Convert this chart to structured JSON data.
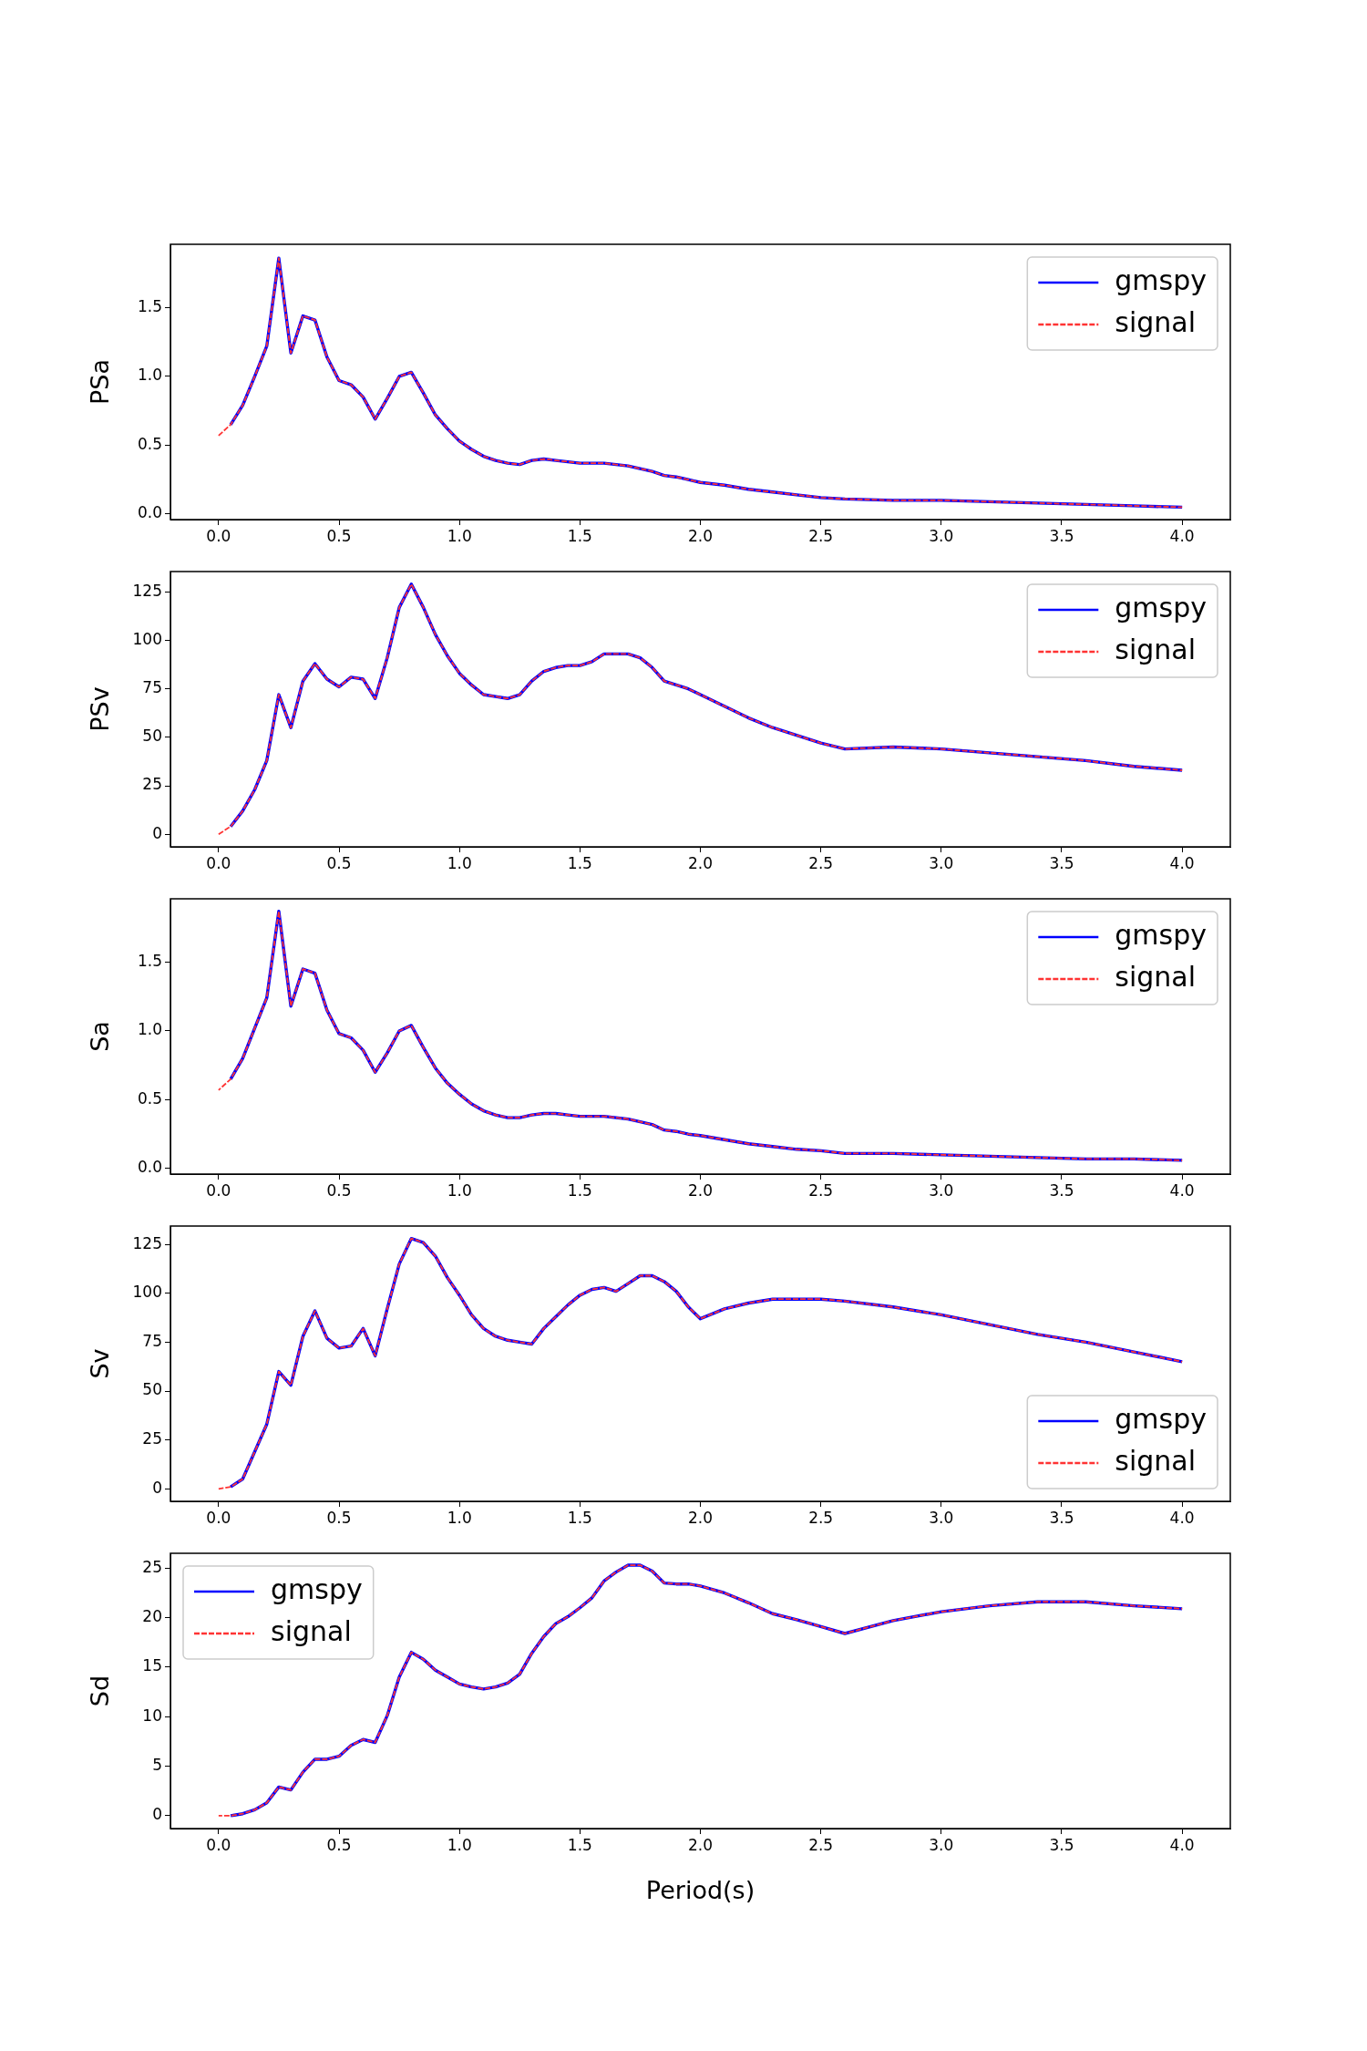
{
  "chart_data": [
    {
      "type": "line",
      "ylabel": "PSa",
      "legend": "top right",
      "xlim": [
        -0.2,
        4.2
      ],
      "ylim": [
        -0.04,
        1.96
      ],
      "xticks": [
        {
          "value": 0,
          "label": "0.0"
        },
        {
          "value": 0.5,
          "label": "0.5"
        },
        {
          "value": 1,
          "label": "1.0"
        },
        {
          "value": 1.5,
          "label": "1.5"
        },
        {
          "value": 2,
          "label": "2.0"
        },
        {
          "value": 2.5,
          "label": "2.5"
        },
        {
          "value": 3,
          "label": "3.0"
        },
        {
          "value": 3.5,
          "label": "3.5"
        },
        {
          "value": 4,
          "label": "4.0"
        }
      ],
      "yticks": [
        {
          "value": 0,
          "label": "0.0"
        },
        {
          "value": 0.5,
          "label": "0.5"
        },
        {
          "value": 1,
          "label": "1.0"
        },
        {
          "value": 1.5,
          "label": "1.5"
        }
      ],
      "x": [
        0,
        0.05,
        0.1,
        0.15,
        0.2,
        0.25,
        0.3,
        0.35,
        0.4,
        0.45,
        0.5,
        0.55,
        0.6,
        0.65,
        0.7,
        0.75,
        0.8,
        0.85,
        0.9,
        0.95,
        1.0,
        1.05,
        1.1,
        1.15,
        1.2,
        1.25,
        1.3,
        1.35,
        1.4,
        1.45,
        1.5,
        1.55,
        1.6,
        1.65,
        1.7,
        1.75,
        1.8,
        1.85,
        1.9,
        1.95,
        2.0,
        2.1,
        2.2,
        2.3,
        2.4,
        2.5,
        2.6,
        2.8,
        3.0,
        3.2,
        3.4,
        3.6,
        3.8,
        4.0
      ],
      "series": [
        {
          "name": "gmspy",
          "color": "#0000ff",
          "line_style": "solid",
          "values": [
            null,
            0.65,
            0.79,
            1.0,
            1.22,
            1.86,
            1.17,
            1.44,
            1.41,
            1.14,
            0.97,
            0.94,
            0.85,
            0.69,
            0.84,
            1.0,
            1.03,
            0.88,
            0.72,
            0.62,
            0.53,
            0.47,
            0.42,
            0.39,
            0.37,
            0.36,
            0.39,
            0.4,
            0.39,
            0.38,
            0.37,
            0.37,
            0.37,
            0.36,
            0.35,
            0.33,
            0.31,
            0.28,
            0.27,
            0.25,
            0.23,
            0.21,
            0.18,
            0.16,
            0.14,
            0.12,
            0.11,
            0.1,
            0.1,
            0.09,
            0.08,
            0.07,
            0.06,
            0.05
          ]
        },
        {
          "name": "signal",
          "color": "#ff3333",
          "line_style": "dashed",
          "values": [
            0.57,
            0.65,
            0.79,
            1.0,
            1.22,
            1.86,
            1.17,
            1.44,
            1.41,
            1.14,
            0.97,
            0.94,
            0.85,
            0.69,
            0.84,
            1.0,
            1.03,
            0.88,
            0.72,
            0.62,
            0.53,
            0.47,
            0.42,
            0.39,
            0.37,
            0.36,
            0.39,
            0.4,
            0.39,
            0.38,
            0.37,
            0.37,
            0.37,
            0.36,
            0.35,
            0.33,
            0.31,
            0.28,
            0.27,
            0.25,
            0.23,
            0.21,
            0.18,
            0.16,
            0.14,
            0.12,
            0.11,
            0.1,
            0.1,
            0.09,
            0.08,
            0.07,
            0.06,
            0.05
          ]
        }
      ]
    },
    {
      "type": "line",
      "ylabel": "PSv",
      "legend": "top right",
      "xlim": [
        -0.2,
        4.2
      ],
      "ylim": [
        -6.5,
        135.5
      ],
      "xticks": [
        {
          "value": 0,
          "label": "0.0"
        },
        {
          "value": 0.5,
          "label": "0.5"
        },
        {
          "value": 1,
          "label": "1.0"
        },
        {
          "value": 1.5,
          "label": "1.5"
        },
        {
          "value": 2,
          "label": "2.0"
        },
        {
          "value": 2.5,
          "label": "2.5"
        },
        {
          "value": 3,
          "label": "3.0"
        },
        {
          "value": 3.5,
          "label": "3.5"
        },
        {
          "value": 4,
          "label": "4.0"
        }
      ],
      "yticks": [
        0,
        25,
        50,
        75,
        100,
        125
      ],
      "x": [
        0,
        0.05,
        0.1,
        0.15,
        0.2,
        0.25,
        0.3,
        0.35,
        0.4,
        0.45,
        0.5,
        0.55,
        0.6,
        0.65,
        0.7,
        0.75,
        0.8,
        0.85,
        0.9,
        0.95,
        1.0,
        1.05,
        1.1,
        1.15,
        1.2,
        1.25,
        1.3,
        1.35,
        1.4,
        1.45,
        1.5,
        1.55,
        1.6,
        1.65,
        1.7,
        1.75,
        1.8,
        1.85,
        1.9,
        1.95,
        2.0,
        2.1,
        2.2,
        2.3,
        2.4,
        2.5,
        2.6,
        2.8,
        3.0,
        3.2,
        3.4,
        3.6,
        3.8,
        4.0
      ],
      "series": [
        {
          "name": "gmspy",
          "color": "#0000ff",
          "line_style": "solid",
          "values": [
            null,
            4,
            12,
            23,
            38,
            72,
            55,
            79,
            88,
            80,
            76,
            81,
            80,
            70,
            91,
            117,
            129,
            117,
            103,
            92,
            83,
            77,
            72,
            71,
            70,
            72,
            79,
            84,
            86,
            87,
            87,
            89,
            93,
            93,
            93,
            91,
            86,
            79,
            77,
            75,
            72,
            66,
            60,
            55,
            51,
            47,
            44,
            45,
            44,
            42,
            40,
            38,
            35,
            33
          ]
        },
        {
          "name": "signal",
          "color": "#ff3333",
          "line_style": "dashed",
          "values": [
            0,
            4,
            12,
            23,
            38,
            72,
            55,
            79,
            88,
            80,
            76,
            81,
            80,
            70,
            91,
            117,
            129,
            117,
            103,
            92,
            83,
            77,
            72,
            71,
            70,
            72,
            79,
            84,
            86,
            87,
            87,
            89,
            93,
            93,
            93,
            91,
            86,
            79,
            77,
            75,
            72,
            66,
            60,
            55,
            51,
            47,
            44,
            45,
            44,
            42,
            40,
            38,
            35,
            33
          ]
        }
      ]
    },
    {
      "type": "line",
      "ylabel": "Sa",
      "legend": "top right",
      "xlim": [
        -0.2,
        4.2
      ],
      "ylim": [
        -0.04,
        1.96
      ],
      "xticks": [
        {
          "value": 0,
          "label": "0.0"
        },
        {
          "value": 0.5,
          "label": "0.5"
        },
        {
          "value": 1,
          "label": "1.0"
        },
        {
          "value": 1.5,
          "label": "1.5"
        },
        {
          "value": 2,
          "label": "2.0"
        },
        {
          "value": 2.5,
          "label": "2.5"
        },
        {
          "value": 3,
          "label": "3.0"
        },
        {
          "value": 3.5,
          "label": "3.5"
        },
        {
          "value": 4,
          "label": "4.0"
        }
      ],
      "yticks": [
        {
          "value": 0,
          "label": "0.0"
        },
        {
          "value": 0.5,
          "label": "0.5"
        },
        {
          "value": 1,
          "label": "1.0"
        },
        {
          "value": 1.5,
          "label": "1.5"
        }
      ],
      "x": [
        0,
        0.05,
        0.1,
        0.15,
        0.2,
        0.25,
        0.3,
        0.35,
        0.4,
        0.45,
        0.5,
        0.55,
        0.6,
        0.65,
        0.7,
        0.75,
        0.8,
        0.85,
        0.9,
        0.95,
        1.0,
        1.05,
        1.1,
        1.15,
        1.2,
        1.25,
        1.3,
        1.35,
        1.4,
        1.45,
        1.5,
        1.55,
        1.6,
        1.65,
        1.7,
        1.75,
        1.8,
        1.85,
        1.9,
        1.95,
        2.0,
        2.1,
        2.2,
        2.3,
        2.4,
        2.5,
        2.6,
        2.8,
        3.0,
        3.2,
        3.4,
        3.6,
        3.8,
        4.0
      ],
      "series": [
        {
          "name": "gmspy",
          "color": "#0000ff",
          "line_style": "solid",
          "values": [
            null,
            0.65,
            0.8,
            1.02,
            1.24,
            1.87,
            1.18,
            1.45,
            1.42,
            1.15,
            0.98,
            0.95,
            0.86,
            0.7,
            0.84,
            1.0,
            1.04,
            0.88,
            0.73,
            0.62,
            0.54,
            0.47,
            0.42,
            0.39,
            0.37,
            0.37,
            0.39,
            0.4,
            0.4,
            0.39,
            0.38,
            0.38,
            0.38,
            0.37,
            0.36,
            0.34,
            0.32,
            0.28,
            0.27,
            0.25,
            0.24,
            0.21,
            0.18,
            0.16,
            0.14,
            0.13,
            0.11,
            0.11,
            0.1,
            0.09,
            0.08,
            0.07,
            0.07,
            0.06
          ]
        },
        {
          "name": "signal",
          "color": "#ff3333",
          "line_style": "dashed",
          "values": [
            0.57,
            0.65,
            0.8,
            1.02,
            1.24,
            1.87,
            1.18,
            1.45,
            1.42,
            1.15,
            0.98,
            0.95,
            0.86,
            0.7,
            0.84,
            1.0,
            1.04,
            0.88,
            0.73,
            0.62,
            0.54,
            0.47,
            0.42,
            0.39,
            0.37,
            0.37,
            0.39,
            0.4,
            0.4,
            0.39,
            0.38,
            0.38,
            0.38,
            0.37,
            0.36,
            0.34,
            0.32,
            0.28,
            0.27,
            0.25,
            0.24,
            0.21,
            0.18,
            0.16,
            0.14,
            0.13,
            0.11,
            0.11,
            0.1,
            0.09,
            0.08,
            0.07,
            0.07,
            0.06
          ]
        }
      ]
    },
    {
      "type": "line",
      "ylabel": "Sv",
      "legend": "bottom right",
      "xlim": [
        -0.2,
        4.2
      ],
      "ylim": [
        -6.4,
        134.4
      ],
      "xticks": [
        {
          "value": 0,
          "label": "0.0"
        },
        {
          "value": 0.5,
          "label": "0.5"
        },
        {
          "value": 1,
          "label": "1.0"
        },
        {
          "value": 1.5,
          "label": "1.5"
        },
        {
          "value": 2,
          "label": "2.0"
        },
        {
          "value": 2.5,
          "label": "2.5"
        },
        {
          "value": 3,
          "label": "3.0"
        },
        {
          "value": 3.5,
          "label": "3.5"
        },
        {
          "value": 4,
          "label": "4.0"
        }
      ],
      "yticks": [
        0,
        25,
        50,
        75,
        100,
        125
      ],
      "x": [
        0,
        0.05,
        0.1,
        0.15,
        0.2,
        0.25,
        0.3,
        0.35,
        0.4,
        0.45,
        0.5,
        0.55,
        0.6,
        0.65,
        0.7,
        0.75,
        0.8,
        0.85,
        0.9,
        0.95,
        1.0,
        1.05,
        1.1,
        1.15,
        1.2,
        1.25,
        1.3,
        1.35,
        1.4,
        1.45,
        1.5,
        1.55,
        1.6,
        1.65,
        1.7,
        1.75,
        1.8,
        1.85,
        1.9,
        1.95,
        2.0,
        2.1,
        2.2,
        2.3,
        2.4,
        2.5,
        2.6,
        2.8,
        3.0,
        3.2,
        3.4,
        3.6,
        3.8,
        4.0
      ],
      "series": [
        {
          "name": "gmspy",
          "color": "#0000ff",
          "line_style": "solid",
          "values": [
            null,
            1,
            5,
            19,
            33,
            60,
            53,
            78,
            91,
            77,
            72,
            73,
            82,
            68,
            92,
            115,
            128,
            126,
            119,
            108,
            99,
            89,
            82,
            78,
            76,
            75,
            74,
            82,
            88,
            94,
            99,
            102,
            103,
            101,
            105,
            109,
            109,
            106,
            101,
            93,
            87,
            92,
            95,
            97,
            97,
            97,
            96,
            93,
            89,
            84,
            79,
            75,
            70,
            65
          ]
        },
        {
          "name": "signal",
          "color": "#ff3333",
          "line_style": "dashed",
          "values": [
            0,
            1,
            5,
            19,
            33,
            60,
            53,
            78,
            91,
            77,
            72,
            73,
            82,
            68,
            92,
            115,
            128,
            126,
            119,
            108,
            99,
            89,
            82,
            78,
            76,
            75,
            74,
            82,
            88,
            94,
            99,
            102,
            103,
            101,
            105,
            109,
            109,
            106,
            101,
            93,
            87,
            92,
            95,
            97,
            97,
            97,
            96,
            93,
            89,
            84,
            79,
            75,
            70,
            65
          ]
        }
      ]
    },
    {
      "type": "line",
      "ylabel": "Sd",
      "xlabel": "Period(s)",
      "legend": "top left",
      "xlim": [
        -0.2,
        4.2
      ],
      "ylim": [
        -1.3,
        26.5
      ],
      "xticks": [
        {
          "value": 0,
          "label": "0.0"
        },
        {
          "value": 0.5,
          "label": "0.5"
        },
        {
          "value": 1,
          "label": "1.0"
        },
        {
          "value": 1.5,
          "label": "1.5"
        },
        {
          "value": 2,
          "label": "2.0"
        },
        {
          "value": 2.5,
          "label": "2.5"
        },
        {
          "value": 3,
          "label": "3.0"
        },
        {
          "value": 3.5,
          "label": "3.5"
        },
        {
          "value": 4,
          "label": "4.0"
        }
      ],
      "yticks": [
        0,
        5,
        10,
        15,
        20,
        25
      ],
      "x": [
        0,
        0.05,
        0.1,
        0.15,
        0.2,
        0.25,
        0.3,
        0.35,
        0.4,
        0.45,
        0.5,
        0.55,
        0.6,
        0.65,
        0.7,
        0.75,
        0.8,
        0.85,
        0.9,
        0.95,
        1.0,
        1.05,
        1.1,
        1.15,
        1.2,
        1.25,
        1.3,
        1.35,
        1.4,
        1.45,
        1.5,
        1.55,
        1.6,
        1.65,
        1.7,
        1.75,
        1.8,
        1.85,
        1.9,
        1.95,
        2.0,
        2.1,
        2.2,
        2.3,
        2.4,
        2.5,
        2.6,
        2.8,
        3.0,
        3.2,
        3.4,
        3.6,
        3.8,
        4.0
      ],
      "series": [
        {
          "name": "gmspy",
          "color": "#0000ff",
          "line_style": "solid",
          "values": [
            null,
            0,
            0.2,
            0.6,
            1.3,
            2.9,
            2.6,
            4.4,
            5.7,
            5.7,
            6.0,
            7.1,
            7.7,
            7.4,
            10.1,
            14.0,
            16.5,
            15.8,
            14.7,
            14.0,
            13.3,
            13.0,
            12.8,
            13.0,
            13.4,
            14.3,
            16.4,
            18.1,
            19.4,
            20.1,
            21.0,
            22.0,
            23.7,
            24.6,
            25.3,
            25.3,
            24.7,
            23.5,
            23.4,
            23.4,
            23.2,
            22.5,
            21.5,
            20.4,
            19.8,
            19.1,
            18.4,
            19.7,
            20.6,
            21.2,
            21.6,
            21.6,
            21.2,
            20.9
          ]
        },
        {
          "name": "signal",
          "color": "#ff3333",
          "line_style": "dashed",
          "values": [
            0,
            0,
            0.2,
            0.6,
            1.3,
            2.9,
            2.6,
            4.4,
            5.7,
            5.7,
            6.0,
            7.1,
            7.7,
            7.4,
            10.1,
            14.0,
            16.5,
            15.8,
            14.7,
            14.0,
            13.3,
            13.0,
            12.8,
            13.0,
            13.4,
            14.3,
            16.4,
            18.1,
            19.4,
            20.1,
            21.0,
            22.0,
            23.7,
            24.6,
            25.3,
            25.3,
            24.7,
            23.5,
            23.4,
            23.4,
            23.2,
            22.5,
            21.5,
            20.4,
            19.8,
            19.1,
            18.4,
            19.7,
            20.6,
            21.2,
            21.6,
            21.6,
            21.2,
            20.9
          ]
        }
      ]
    }
  ]
}
